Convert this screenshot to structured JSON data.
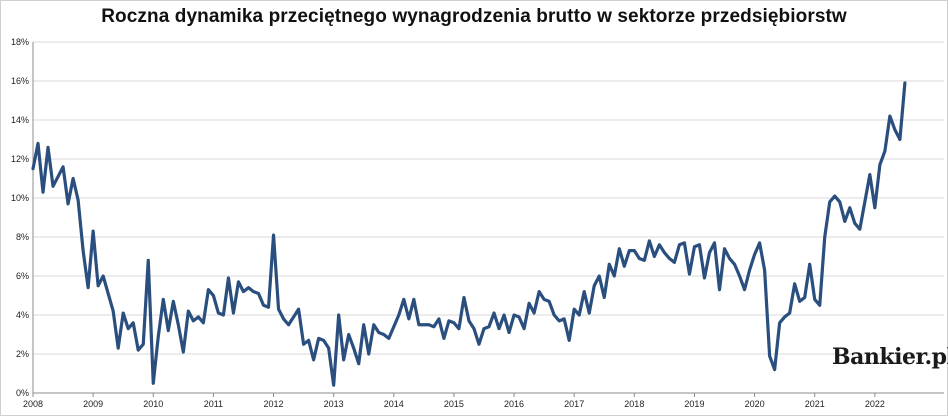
{
  "brand": {
    "logo_text": "Bankier.pl"
  },
  "colors": {
    "line": "#2a4f7f",
    "grid": "#d9d9d9",
    "axis": "#8c8c8c"
  },
  "chart_data": {
    "type": "line",
    "title": "Roczna dynamika przeciętnego wynagrodzenia brutto w sektorze przedsiębiorstw",
    "xlabel": "",
    "ylabel": "",
    "y_unit": "%",
    "ylim": [
      0,
      18
    ],
    "y_ticks": [
      "0%",
      "2%",
      "4%",
      "6%",
      "8%",
      "10%",
      "12%",
      "14%",
      "16%",
      "18%"
    ],
    "x_ticks": [
      "2008",
      "2009",
      "2010",
      "2011",
      "2012",
      "2013",
      "2014",
      "2015",
      "2016",
      "2017",
      "2018",
      "2019",
      "2020",
      "2021",
      "2022"
    ],
    "grid": true,
    "legend": "none",
    "series": [
      {
        "start": "2008-01",
        "frequency": "monthly",
        "values": [
          11.5,
          12.8,
          10.3,
          12.6,
          10.6,
          11.1,
          11.6,
          9.7,
          11.0,
          9.9,
          7.3,
          5.4,
          8.3,
          5.5,
          6.0,
          5.1,
          4.2,
          2.3,
          4.1,
          3.3,
          3.6,
          2.2,
          2.5,
          6.8,
          0.5,
          2.9,
          4.8,
          3.2,
          4.7,
          3.5,
          2.1,
          4.2,
          3.7,
          3.9,
          3.6,
          5.3,
          5.0,
          4.1,
          4.0,
          5.9,
          4.1,
          5.7,
          5.2,
          5.4,
          5.2,
          5.1,
          4.5,
          4.4,
          8.1,
          4.3,
          3.8,
          3.5,
          3.9,
          4.3,
          2.5,
          2.7,
          1.7,
          2.8,
          2.7,
          2.3,
          0.4,
          4.0,
          1.7,
          3.0,
          2.3,
          1.5,
          3.5,
          2.0,
          3.5,
          3.1,
          3.0,
          2.8,
          3.4,
          4.0,
          4.8,
          3.8,
          4.8,
          3.5,
          3.5,
          3.5,
          3.4,
          3.8,
          2.8,
          3.7,
          3.6,
          3.3,
          4.9,
          3.7,
          3.3,
          2.5,
          3.3,
          3.4,
          4.1,
          3.3,
          4.0,
          3.1,
          4.0,
          3.9,
          3.3,
          4.6,
          4.1,
          5.2,
          4.8,
          4.7,
          4.0,
          3.7,
          3.8,
          2.7,
          4.3,
          4.0,
          5.2,
          4.1,
          5.5,
          6.0,
          4.9,
          6.6,
          6.0,
          7.4,
          6.5,
          7.3,
          7.3,
          6.9,
          6.8,
          7.8,
          7.0,
          7.6,
          7.2,
          6.9,
          6.7,
          7.6,
          7.7,
          6.1,
          7.5,
          7.6,
          5.9,
          7.2,
          7.7,
          5.3,
          7.4,
          6.9,
          6.6,
          6.0,
          5.3,
          6.3,
          7.1,
          7.7,
          6.3,
          1.9,
          1.2,
          3.6,
          3.9,
          4.1,
          5.6,
          4.7,
          4.9,
          6.6,
          4.8,
          4.5,
          8.0,
          9.8,
          10.1,
          9.8,
          8.8,
          9.5,
          8.7,
          8.4,
          9.8,
          11.2,
          9.5,
          11.7,
          12.4,
          14.2,
          13.5,
          13.0,
          15.9
        ]
      }
    ]
  }
}
